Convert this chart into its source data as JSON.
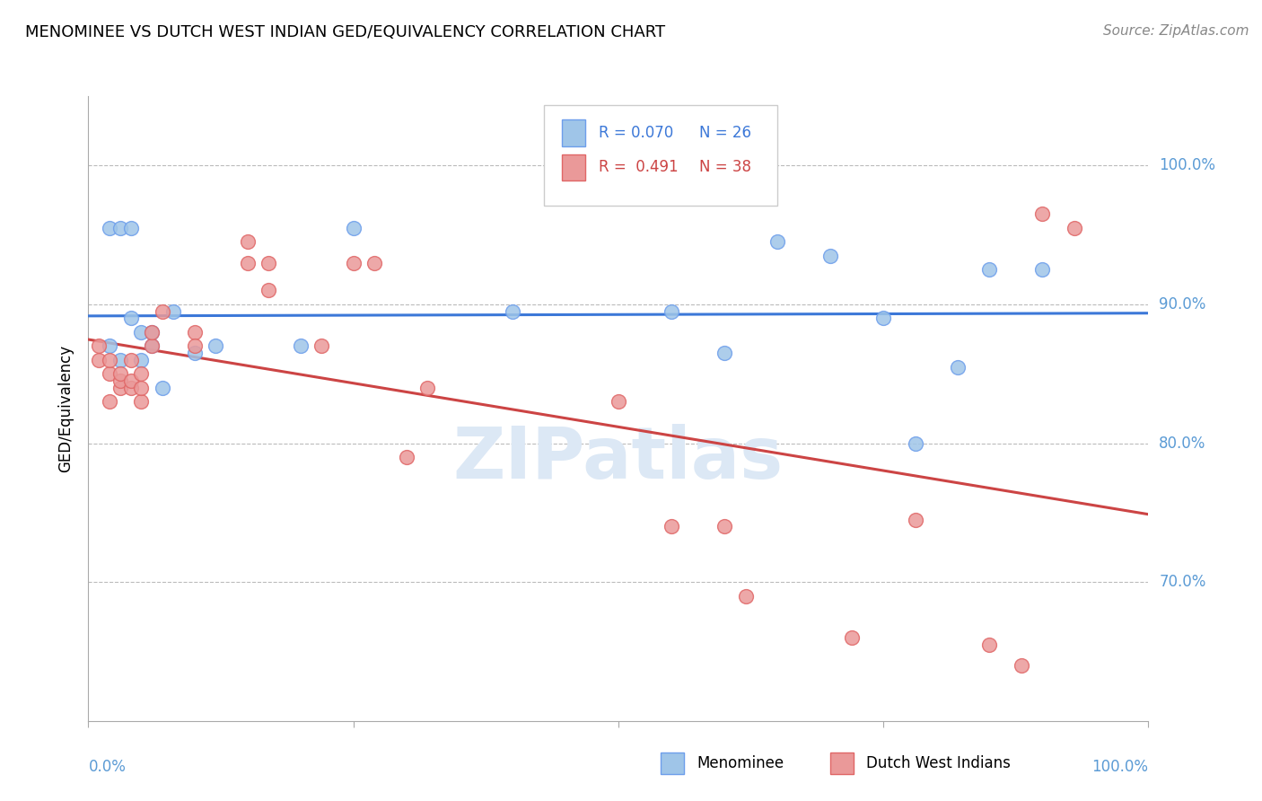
{
  "title": "MENOMINEE VS DUTCH WEST INDIAN GED/EQUIVALENCY CORRELATION CHART",
  "source": "Source: ZipAtlas.com",
  "ylabel": "GED/Equivalency",
  "ytick_labels": [
    "70.0%",
    "80.0%",
    "90.0%",
    "100.0%"
  ],
  "ytick_values": [
    0.7,
    0.8,
    0.9,
    1.0
  ],
  "xlim": [
    0.0,
    1.0
  ],
  "ylim": [
    0.6,
    1.05
  ],
  "legend_r_blue": "R = 0.070",
  "legend_n_blue": "N = 26",
  "legend_r_pink": "R =  0.491",
  "legend_n_pink": "N = 38",
  "blue_color": "#9fc5e8",
  "pink_color": "#ea9999",
  "blue_edge_color": "#6d9eeb",
  "pink_edge_color": "#e06666",
  "blue_line_color": "#3c78d8",
  "pink_line_color": "#cc4444",
  "tick_color": "#5b9bd5",
  "watermark": "ZIPatlas",
  "menominee_label": "Menominee",
  "dutch_label": "Dutch West Indians",
  "blue_x": [
    0.02,
    0.03,
    0.04,
    0.05,
    0.05,
    0.06,
    0.06,
    0.07,
    0.08,
    0.1,
    0.12,
    0.2,
    0.4,
    0.55,
    0.6,
    0.65,
    0.7,
    0.75,
    0.78,
    0.82,
    0.85,
    0.9,
    0.02,
    0.03,
    0.04,
    0.25
  ],
  "blue_y": [
    0.87,
    0.86,
    0.89,
    0.88,
    0.86,
    0.87,
    0.88,
    0.84,
    0.895,
    0.865,
    0.87,
    0.87,
    0.895,
    0.895,
    0.865,
    0.945,
    0.935,
    0.89,
    0.8,
    0.855,
    0.925,
    0.925,
    0.955,
    0.955,
    0.955,
    0.955
  ],
  "pink_x": [
    0.01,
    0.01,
    0.02,
    0.02,
    0.02,
    0.03,
    0.03,
    0.03,
    0.04,
    0.04,
    0.04,
    0.05,
    0.05,
    0.05,
    0.06,
    0.06,
    0.07,
    0.1,
    0.1,
    0.15,
    0.15,
    0.17,
    0.17,
    0.22,
    0.25,
    0.27,
    0.3,
    0.32,
    0.5,
    0.55,
    0.6,
    0.62,
    0.72,
    0.78,
    0.85,
    0.88,
    0.9,
    0.93
  ],
  "pink_y": [
    0.86,
    0.87,
    0.83,
    0.85,
    0.86,
    0.84,
    0.845,
    0.85,
    0.84,
    0.845,
    0.86,
    0.83,
    0.84,
    0.85,
    0.87,
    0.88,
    0.895,
    0.88,
    0.87,
    0.93,
    0.945,
    0.91,
    0.93,
    0.87,
    0.93,
    0.93,
    0.79,
    0.84,
    0.83,
    0.74,
    0.74,
    0.69,
    0.66,
    0.745,
    0.655,
    0.64,
    0.965,
    0.955
  ]
}
